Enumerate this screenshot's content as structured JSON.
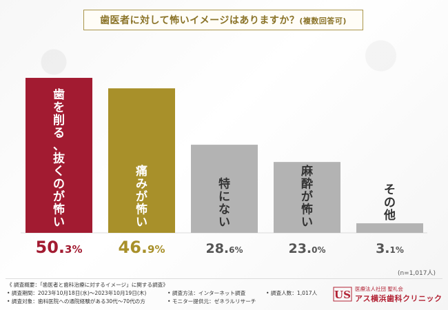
{
  "title": {
    "main": "歯医者に対して怖いイメージはありますか？",
    "suffix": "(複数回答可)"
  },
  "colors": {
    "bar1": "#a21b31",
    "bar2": "#a8902a",
    "gray": "#b3b3b3",
    "title_accent": "#8a7328",
    "logo_red": "#b22234"
  },
  "chart_data": {
    "type": "bar",
    "title": "歯医者に対して怖いイメージはありますか？(複数回答可)",
    "categories": [
      "歯を削る、抜くのが怖い",
      "痛みが怖い",
      "特にない",
      "麻酔が怖い",
      "その他"
    ],
    "values": [
      50.3,
      46.9,
      28.6,
      23.0,
      3.1
    ],
    "value_labels": [
      {
        "main": "50.",
        "small": "3%"
      },
      {
        "main": "46.",
        "small": "9%"
      },
      {
        "main": "28.",
        "small": "6%"
      },
      {
        "main": "23.",
        "small": "0%"
      },
      {
        "main": "3.",
        "small": "1%"
      }
    ],
    "bar_colors": [
      "#a21b31",
      "#a8902a",
      "#b3b3b3",
      "#b3b3b3",
      "#b3b3b3"
    ],
    "highlighted": [
      true,
      true,
      false,
      false,
      false
    ],
    "ylim": [
      0,
      55
    ],
    "xlabel": "",
    "ylabel": "",
    "grid": false
  },
  "sample_note": "(n=1,017人)",
  "footnotes": {
    "summary": "《 調査概要：「歯医者と歯科治療に対するイメージ」に関する調査》",
    "period": "• 調査期間：2023年10月18日(水)～2023年10月19日(木)",
    "method": "• 調査方法：インターネット調査",
    "count": "• 調査人数：1,017人",
    "target": "• 調査対象：歯科医院への通院経験がある30代～70代の方",
    "provider": "• モニター提供元：ゼネラルリサーチ"
  },
  "logo": {
    "mark": "US",
    "org": "医療法人社団 聖礼会",
    "name": "アス横浜歯科クリニック"
  }
}
